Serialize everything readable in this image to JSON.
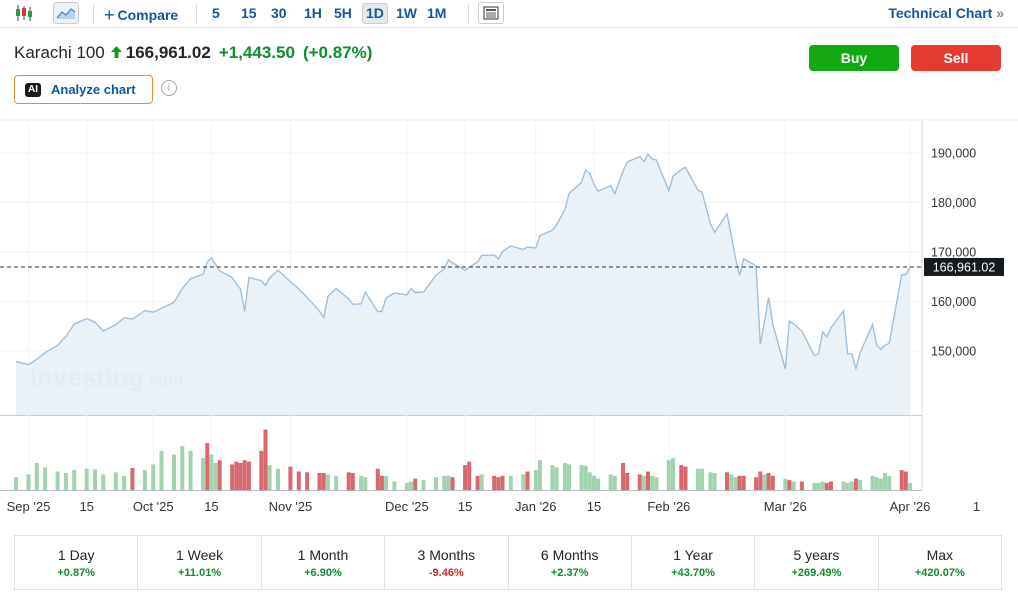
{
  "toolbar": {
    "compare_label": "Compare",
    "intervals": [
      "5",
      "15",
      "30",
      "1H",
      "5H",
      "1D",
      "1W",
      "1M"
    ],
    "active_interval": "1D",
    "technical_chart_label": "Technical Chart",
    "technical_chart_arrow": "»"
  },
  "header": {
    "instrument": "Karachi 100",
    "price": "166,961.02",
    "change": "+1,443.50",
    "change_pct": "(+0.87%)",
    "direction_arrow": "🡅"
  },
  "buttons": {
    "buy": "Buy",
    "sell": "Sell"
  },
  "analyze": {
    "ai_badge": "AI",
    "label": "Analyze chart",
    "info_glyph": "i"
  },
  "watermark": {
    "main": "Investing",
    "suffix": ".com"
  },
  "colors": {
    "line": "#9ec0dd",
    "area_fill": "#e6eef6",
    "volume_up": "#a3d3ae",
    "volume_down": "#d9676e",
    "accent": "#1256a0",
    "positive": "#0b8f2c",
    "negative": "#d22a20",
    "buy": "#12a812",
    "sell": "#e43a30"
  },
  "chart_data": {
    "type": "area",
    "y_ticks": [
      "150,000",
      "160,000",
      "170,000",
      "180,000",
      "190,000"
    ],
    "y_tick_values": [
      150000,
      160000,
      170000,
      180000,
      190000
    ],
    "ylim": [
      137000,
      196500
    ],
    "last_price_label": "166,961.02",
    "last_price": 166961.02,
    "x_ticks": [
      {
        "label": "Sep '25",
        "date": "2025-09-01"
      },
      {
        "label": "15",
        "date": "2025-09-15"
      },
      {
        "label": "Oct '25",
        "date": "2025-10-01"
      },
      {
        "label": "15",
        "date": "2025-10-15"
      },
      {
        "label": "Nov '25",
        "date": "2025-11-03"
      },
      {
        "label": "Dec '25",
        "date": "2025-12-01"
      },
      {
        "label": "15",
        "date": "2025-12-15"
      },
      {
        "label": "Jan '26",
        "date": "2026-01-01"
      },
      {
        "label": "15",
        "date": "2026-01-15"
      },
      {
        "label": "Feb '26",
        "date": "2026-02-02"
      },
      {
        "label": "Mar '26",
        "date": "2026-03-02"
      },
      {
        "label": "Apr '26",
        "date": "2026-04-01"
      },
      {
        "label": "1",
        "date": "2026-04-17"
      }
    ],
    "price_points": [
      [
        "2025-08-29",
        147800
      ],
      [
        "2025-09-01",
        147200
      ],
      [
        "2025-09-03",
        148300
      ],
      [
        "2025-09-05",
        149600
      ],
      [
        "2025-09-08",
        151100
      ],
      [
        "2025-09-10",
        152900
      ],
      [
        "2025-09-12",
        155400
      ],
      [
        "2025-09-15",
        156500
      ],
      [
        "2025-09-17",
        155800
      ],
      [
        "2025-09-19",
        154000
      ],
      [
        "2025-09-22",
        155300
      ],
      [
        "2025-09-24",
        156700
      ],
      [
        "2025-09-26",
        156400
      ],
      [
        "2025-09-29",
        158100
      ],
      [
        "2025-10-01",
        157800
      ],
      [
        "2025-10-03",
        158600
      ],
      [
        "2025-10-06",
        159800
      ],
      [
        "2025-10-08",
        162600
      ],
      [
        "2025-10-10",
        164600
      ],
      [
        "2025-10-13",
        165500
      ],
      [
        "2025-10-14",
        168000
      ],
      [
        "2025-10-15",
        168800
      ],
      [
        "2025-10-16",
        167500
      ],
      [
        "2025-10-17",
        166200
      ],
      [
        "2025-10-20",
        164800
      ],
      [
        "2025-10-21",
        163600
      ],
      [
        "2025-10-22",
        162500
      ],
      [
        "2025-10-23",
        158000
      ],
      [
        "2025-10-24",
        164800
      ],
      [
        "2025-10-27",
        164200
      ],
      [
        "2025-10-28",
        163200
      ],
      [
        "2025-10-29",
        164700
      ],
      [
        "2025-10-31",
        166300
      ],
      [
        "2025-11-03",
        164000
      ],
      [
        "2025-11-05",
        162500
      ],
      [
        "2025-11-07",
        160800
      ],
      [
        "2025-11-10",
        158000
      ],
      [
        "2025-11-11",
        156700
      ],
      [
        "2025-11-12",
        161000
      ],
      [
        "2025-11-14",
        162600
      ],
      [
        "2025-11-17",
        160500
      ],
      [
        "2025-11-18",
        159400
      ],
      [
        "2025-11-20",
        159500
      ],
      [
        "2025-11-21",
        161900
      ],
      [
        "2025-11-24",
        157900
      ],
      [
        "2025-11-25",
        158000
      ],
      [
        "2025-11-26",
        160700
      ],
      [
        "2025-11-28",
        161700
      ],
      [
        "2025-12-01",
        161300
      ],
      [
        "2025-12-02",
        162600
      ],
      [
        "2025-12-03",
        161800
      ],
      [
        "2025-12-05",
        161900
      ],
      [
        "2025-12-08",
        165300
      ],
      [
        "2025-12-10",
        166600
      ],
      [
        "2025-12-11",
        168400
      ],
      [
        "2025-12-12",
        167800
      ],
      [
        "2025-12-15",
        166300
      ],
      [
        "2025-12-16",
        166900
      ],
      [
        "2025-12-18",
        168000
      ],
      [
        "2025-12-19",
        169300
      ],
      [
        "2025-12-22",
        169400
      ],
      [
        "2025-12-23",
        168600
      ],
      [
        "2025-12-24",
        170100
      ],
      [
        "2025-12-26",
        171200
      ],
      [
        "2025-12-29",
        170500
      ],
      [
        "2025-12-30",
        171000
      ],
      [
        "2026-01-01",
        170800
      ],
      [
        "2026-01-02",
        173300
      ],
      [
        "2026-01-05",
        174400
      ],
      [
        "2026-01-06",
        175500
      ],
      [
        "2026-01-08",
        178600
      ],
      [
        "2026-01-09",
        181800
      ],
      [
        "2026-01-12",
        184100
      ],
      [
        "2026-01-13",
        186600
      ],
      [
        "2026-01-14",
        185900
      ],
      [
        "2026-01-15",
        183700
      ],
      [
        "2026-01-16",
        182300
      ],
      [
        "2026-01-19",
        183400
      ],
      [
        "2026-01-20",
        181800
      ],
      [
        "2026-01-22",
        186400
      ],
      [
        "2026-01-23",
        188200
      ],
      [
        "2026-01-26",
        189300
      ],
      [
        "2026-01-27",
        188300
      ],
      [
        "2026-01-28",
        189800
      ],
      [
        "2026-01-29",
        188800
      ],
      [
        "2026-01-30",
        188600
      ],
      [
        "2026-02-02",
        182400
      ],
      [
        "2026-02-03",
        185300
      ],
      [
        "2026-02-05",
        186700
      ],
      [
        "2026-02-06",
        187100
      ],
      [
        "2026-02-09",
        182500
      ],
      [
        "2026-02-10",
        182100
      ],
      [
        "2026-02-12",
        175700
      ],
      [
        "2026-02-13",
        174000
      ],
      [
        "2026-02-16",
        177700
      ],
      [
        "2026-02-17",
        173500
      ],
      [
        "2026-02-18",
        168800
      ],
      [
        "2026-02-19",
        165300
      ],
      [
        "2026-02-20",
        168600
      ],
      [
        "2026-02-23",
        167200
      ],
      [
        "2026-02-24",
        151300
      ],
      [
        "2026-02-25",
        155900
      ],
      [
        "2026-02-26",
        160800
      ],
      [
        "2026-02-27",
        155400
      ],
      [
        "2026-03-02",
        146300
      ],
      [
        "2026-03-03",
        156000
      ],
      [
        "2026-03-04",
        155500
      ],
      [
        "2026-03-06",
        154000
      ],
      [
        "2026-03-09",
        149000
      ],
      [
        "2026-03-10",
        149400
      ],
      [
        "2026-03-11",
        153800
      ],
      [
        "2026-03-12",
        152800
      ],
      [
        "2026-03-13",
        154600
      ],
      [
        "2026-03-16",
        158100
      ],
      [
        "2026-03-17",
        149400
      ],
      [
        "2026-03-18",
        149400
      ],
      [
        "2026-03-19",
        146400
      ],
      [
        "2026-03-20",
        149600
      ],
      [
        "2026-03-23",
        155300
      ],
      [
        "2026-03-24",
        151100
      ],
      [
        "2026-03-25",
        150300
      ],
      [
        "2026-03-26",
        151100
      ],
      [
        "2026-03-27",
        151500
      ],
      [
        "2026-03-30",
        165400
      ],
      [
        "2026-03-31",
        165400
      ],
      [
        "2026-04-01",
        166961
      ]
    ],
    "volume_points": [
      [
        "2025-08-29",
        0.18,
        "up"
      ],
      [
        "2025-09-01",
        0.22,
        "up"
      ],
      [
        "2025-09-03",
        0.38,
        "up"
      ],
      [
        "2025-09-05",
        0.32,
        "up"
      ],
      [
        "2025-09-08",
        0.26,
        "up"
      ],
      [
        "2025-09-10",
        0.24,
        "up"
      ],
      [
        "2025-09-12",
        0.28,
        "up"
      ],
      [
        "2025-09-15",
        0.3,
        "up"
      ],
      [
        "2025-09-17",
        0.29,
        "up"
      ],
      [
        "2025-09-19",
        0.22,
        "up"
      ],
      [
        "2025-09-22",
        0.25,
        "up"
      ],
      [
        "2025-09-24",
        0.2,
        "up"
      ],
      [
        "2025-09-26",
        0.31,
        "down"
      ],
      [
        "2025-09-29",
        0.28,
        "up"
      ],
      [
        "2025-10-01",
        0.36,
        "up"
      ],
      [
        "2025-10-03",
        0.55,
        "up"
      ],
      [
        "2025-10-06",
        0.5,
        "up"
      ],
      [
        "2025-10-08",
        0.62,
        "up"
      ],
      [
        "2025-10-10",
        0.55,
        "up"
      ],
      [
        "2025-10-13",
        0.45,
        "up"
      ],
      [
        "2025-10-14",
        0.66,
        "down"
      ],
      [
        "2025-10-15",
        0.5,
        "up"
      ],
      [
        "2025-10-16",
        0.38,
        "up"
      ],
      [
        "2025-10-17",
        0.42,
        "down"
      ],
      [
        "2025-10-20",
        0.36,
        "down"
      ],
      [
        "2025-10-21",
        0.4,
        "down"
      ],
      [
        "2025-10-22",
        0.38,
        "down"
      ],
      [
        "2025-10-23",
        0.42,
        "down"
      ],
      [
        "2025-10-24",
        0.4,
        "down"
      ],
      [
        "2025-10-27",
        0.55,
        "down"
      ],
      [
        "2025-10-28",
        0.85,
        "down"
      ],
      [
        "2025-10-29",
        0.35,
        "up"
      ],
      [
        "2025-10-31",
        0.3,
        "up"
      ],
      [
        "2025-11-03",
        0.33,
        "down"
      ],
      [
        "2025-11-05",
        0.26,
        "down"
      ],
      [
        "2025-11-07",
        0.25,
        "down"
      ],
      [
        "2025-11-10",
        0.24,
        "down"
      ],
      [
        "2025-11-11",
        0.24,
        "down"
      ],
      [
        "2025-11-12",
        0.22,
        "up"
      ],
      [
        "2025-11-14",
        0.2,
        "up"
      ],
      [
        "2025-11-17",
        0.25,
        "down"
      ],
      [
        "2025-11-18",
        0.24,
        "down"
      ],
      [
        "2025-11-20",
        0.2,
        "up"
      ],
      [
        "2025-11-21",
        0.18,
        "up"
      ],
      [
        "2025-11-24",
        0.3,
        "down"
      ],
      [
        "2025-11-25",
        0.2,
        "down"
      ],
      [
        "2025-11-26",
        0.2,
        "up"
      ],
      [
        "2025-11-28",
        0.12,
        "up"
      ],
      [
        "2025-12-01",
        0.1,
        "up"
      ],
      [
        "2025-12-02",
        0.12,
        "up"
      ],
      [
        "2025-12-03",
        0.16,
        "down"
      ],
      [
        "2025-12-05",
        0.14,
        "up"
      ],
      [
        "2025-12-08",
        0.18,
        "up"
      ],
      [
        "2025-12-10",
        0.2,
        "up"
      ],
      [
        "2025-12-11",
        0.2,
        "up"
      ],
      [
        "2025-12-12",
        0.18,
        "down"
      ],
      [
        "2025-12-15",
        0.35,
        "down"
      ],
      [
        "2025-12-16",
        0.4,
        "down"
      ],
      [
        "2025-12-18",
        0.2,
        "down"
      ],
      [
        "2025-12-19",
        0.22,
        "up"
      ],
      [
        "2025-12-22",
        0.2,
        "down"
      ],
      [
        "2025-12-23",
        0.18,
        "down"
      ],
      [
        "2025-12-24",
        0.2,
        "down"
      ],
      [
        "2025-12-26",
        0.2,
        "up"
      ],
      [
        "2025-12-29",
        0.22,
        "up"
      ],
      [
        "2025-12-30",
        0.26,
        "down"
      ],
      [
        "2026-01-01",
        0.28,
        "up"
      ],
      [
        "2026-01-02",
        0.42,
        "up"
      ],
      [
        "2026-01-05",
        0.35,
        "up"
      ],
      [
        "2026-01-06",
        0.32,
        "up"
      ],
      [
        "2026-01-08",
        0.38,
        "up"
      ],
      [
        "2026-01-09",
        0.36,
        "up"
      ],
      [
        "2026-01-12",
        0.35,
        "up"
      ],
      [
        "2026-01-13",
        0.34,
        "up"
      ],
      [
        "2026-01-14",
        0.25,
        "up"
      ],
      [
        "2026-01-15",
        0.2,
        "up"
      ],
      [
        "2026-01-16",
        0.16,
        "up"
      ],
      [
        "2026-01-19",
        0.22,
        "up"
      ],
      [
        "2026-01-20",
        0.2,
        "up"
      ],
      [
        "2026-01-22",
        0.38,
        "down"
      ],
      [
        "2026-01-23",
        0.24,
        "down"
      ],
      [
        "2026-01-26",
        0.22,
        "down"
      ],
      [
        "2026-01-27",
        0.2,
        "up"
      ],
      [
        "2026-01-28",
        0.26,
        "down"
      ],
      [
        "2026-01-29",
        0.2,
        "up"
      ],
      [
        "2026-01-30",
        0.18,
        "up"
      ],
      [
        "2026-02-02",
        0.42,
        "up"
      ],
      [
        "2026-02-03",
        0.45,
        "up"
      ],
      [
        "2026-02-05",
        0.35,
        "down"
      ],
      [
        "2026-02-06",
        0.33,
        "down"
      ],
      [
        "2026-02-09",
        0.3,
        "up"
      ],
      [
        "2026-02-10",
        0.3,
        "up"
      ],
      [
        "2026-02-12",
        0.25,
        "up"
      ],
      [
        "2026-02-13",
        0.24,
        "up"
      ],
      [
        "2026-02-16",
        0.25,
        "down"
      ],
      [
        "2026-02-17",
        0.22,
        "up"
      ],
      [
        "2026-02-18",
        0.18,
        "up"
      ],
      [
        "2026-02-19",
        0.2,
        "down"
      ],
      [
        "2026-02-20",
        0.2,
        "down"
      ],
      [
        "2026-02-23",
        0.18,
        "down"
      ],
      [
        "2026-02-24",
        0.26,
        "down"
      ],
      [
        "2026-02-25",
        0.22,
        "up"
      ],
      [
        "2026-02-26",
        0.24,
        "down"
      ],
      [
        "2026-02-27",
        0.2,
        "down"
      ],
      [
        "2026-03-02",
        0.16,
        "up"
      ],
      [
        "2026-03-03",
        0.14,
        "down"
      ],
      [
        "2026-03-04",
        0.12,
        "up"
      ],
      [
        "2026-03-06",
        0.12,
        "down"
      ],
      [
        "2026-03-09",
        0.1,
        "up"
      ],
      [
        "2026-03-10",
        0.1,
        "up"
      ],
      [
        "2026-03-11",
        0.12,
        "up"
      ],
      [
        "2026-03-12",
        0.1,
        "down"
      ],
      [
        "2026-03-13",
        0.12,
        "down"
      ],
      [
        "2026-03-16",
        0.12,
        "up"
      ],
      [
        "2026-03-17",
        0.1,
        "up"
      ],
      [
        "2026-03-18",
        0.12,
        "up"
      ],
      [
        "2026-03-19",
        0.16,
        "down"
      ],
      [
        "2026-03-20",
        0.14,
        "up"
      ],
      [
        "2026-03-23",
        0.2,
        "up"
      ],
      [
        "2026-03-24",
        0.18,
        "up"
      ],
      [
        "2026-03-25",
        0.16,
        "up"
      ],
      [
        "2026-03-26",
        0.24,
        "up"
      ],
      [
        "2026-03-27",
        0.2,
        "up"
      ],
      [
        "2026-03-30",
        0.28,
        "down"
      ],
      [
        "2026-03-31",
        0.26,
        "down"
      ],
      [
        "2026-04-01",
        0.1,
        "up"
      ]
    ]
  },
  "performance": [
    {
      "label": "1 Day",
      "value": "+0.87%",
      "sign": "pos"
    },
    {
      "label": "1 Week",
      "value": "+11.01%",
      "sign": "pos"
    },
    {
      "label": "1 Month",
      "value": "+6.90%",
      "sign": "pos"
    },
    {
      "label": "3 Months",
      "value": "-9.46%",
      "sign": "neg"
    },
    {
      "label": "6 Months",
      "value": "+2.37%",
      "sign": "pos"
    },
    {
      "label": "1 Year",
      "value": "+43.70%",
      "sign": "pos"
    },
    {
      "label": "5 years",
      "value": "+269.49%",
      "sign": "pos"
    },
    {
      "label": "Max",
      "value": "+420.07%",
      "sign": "pos"
    }
  ]
}
